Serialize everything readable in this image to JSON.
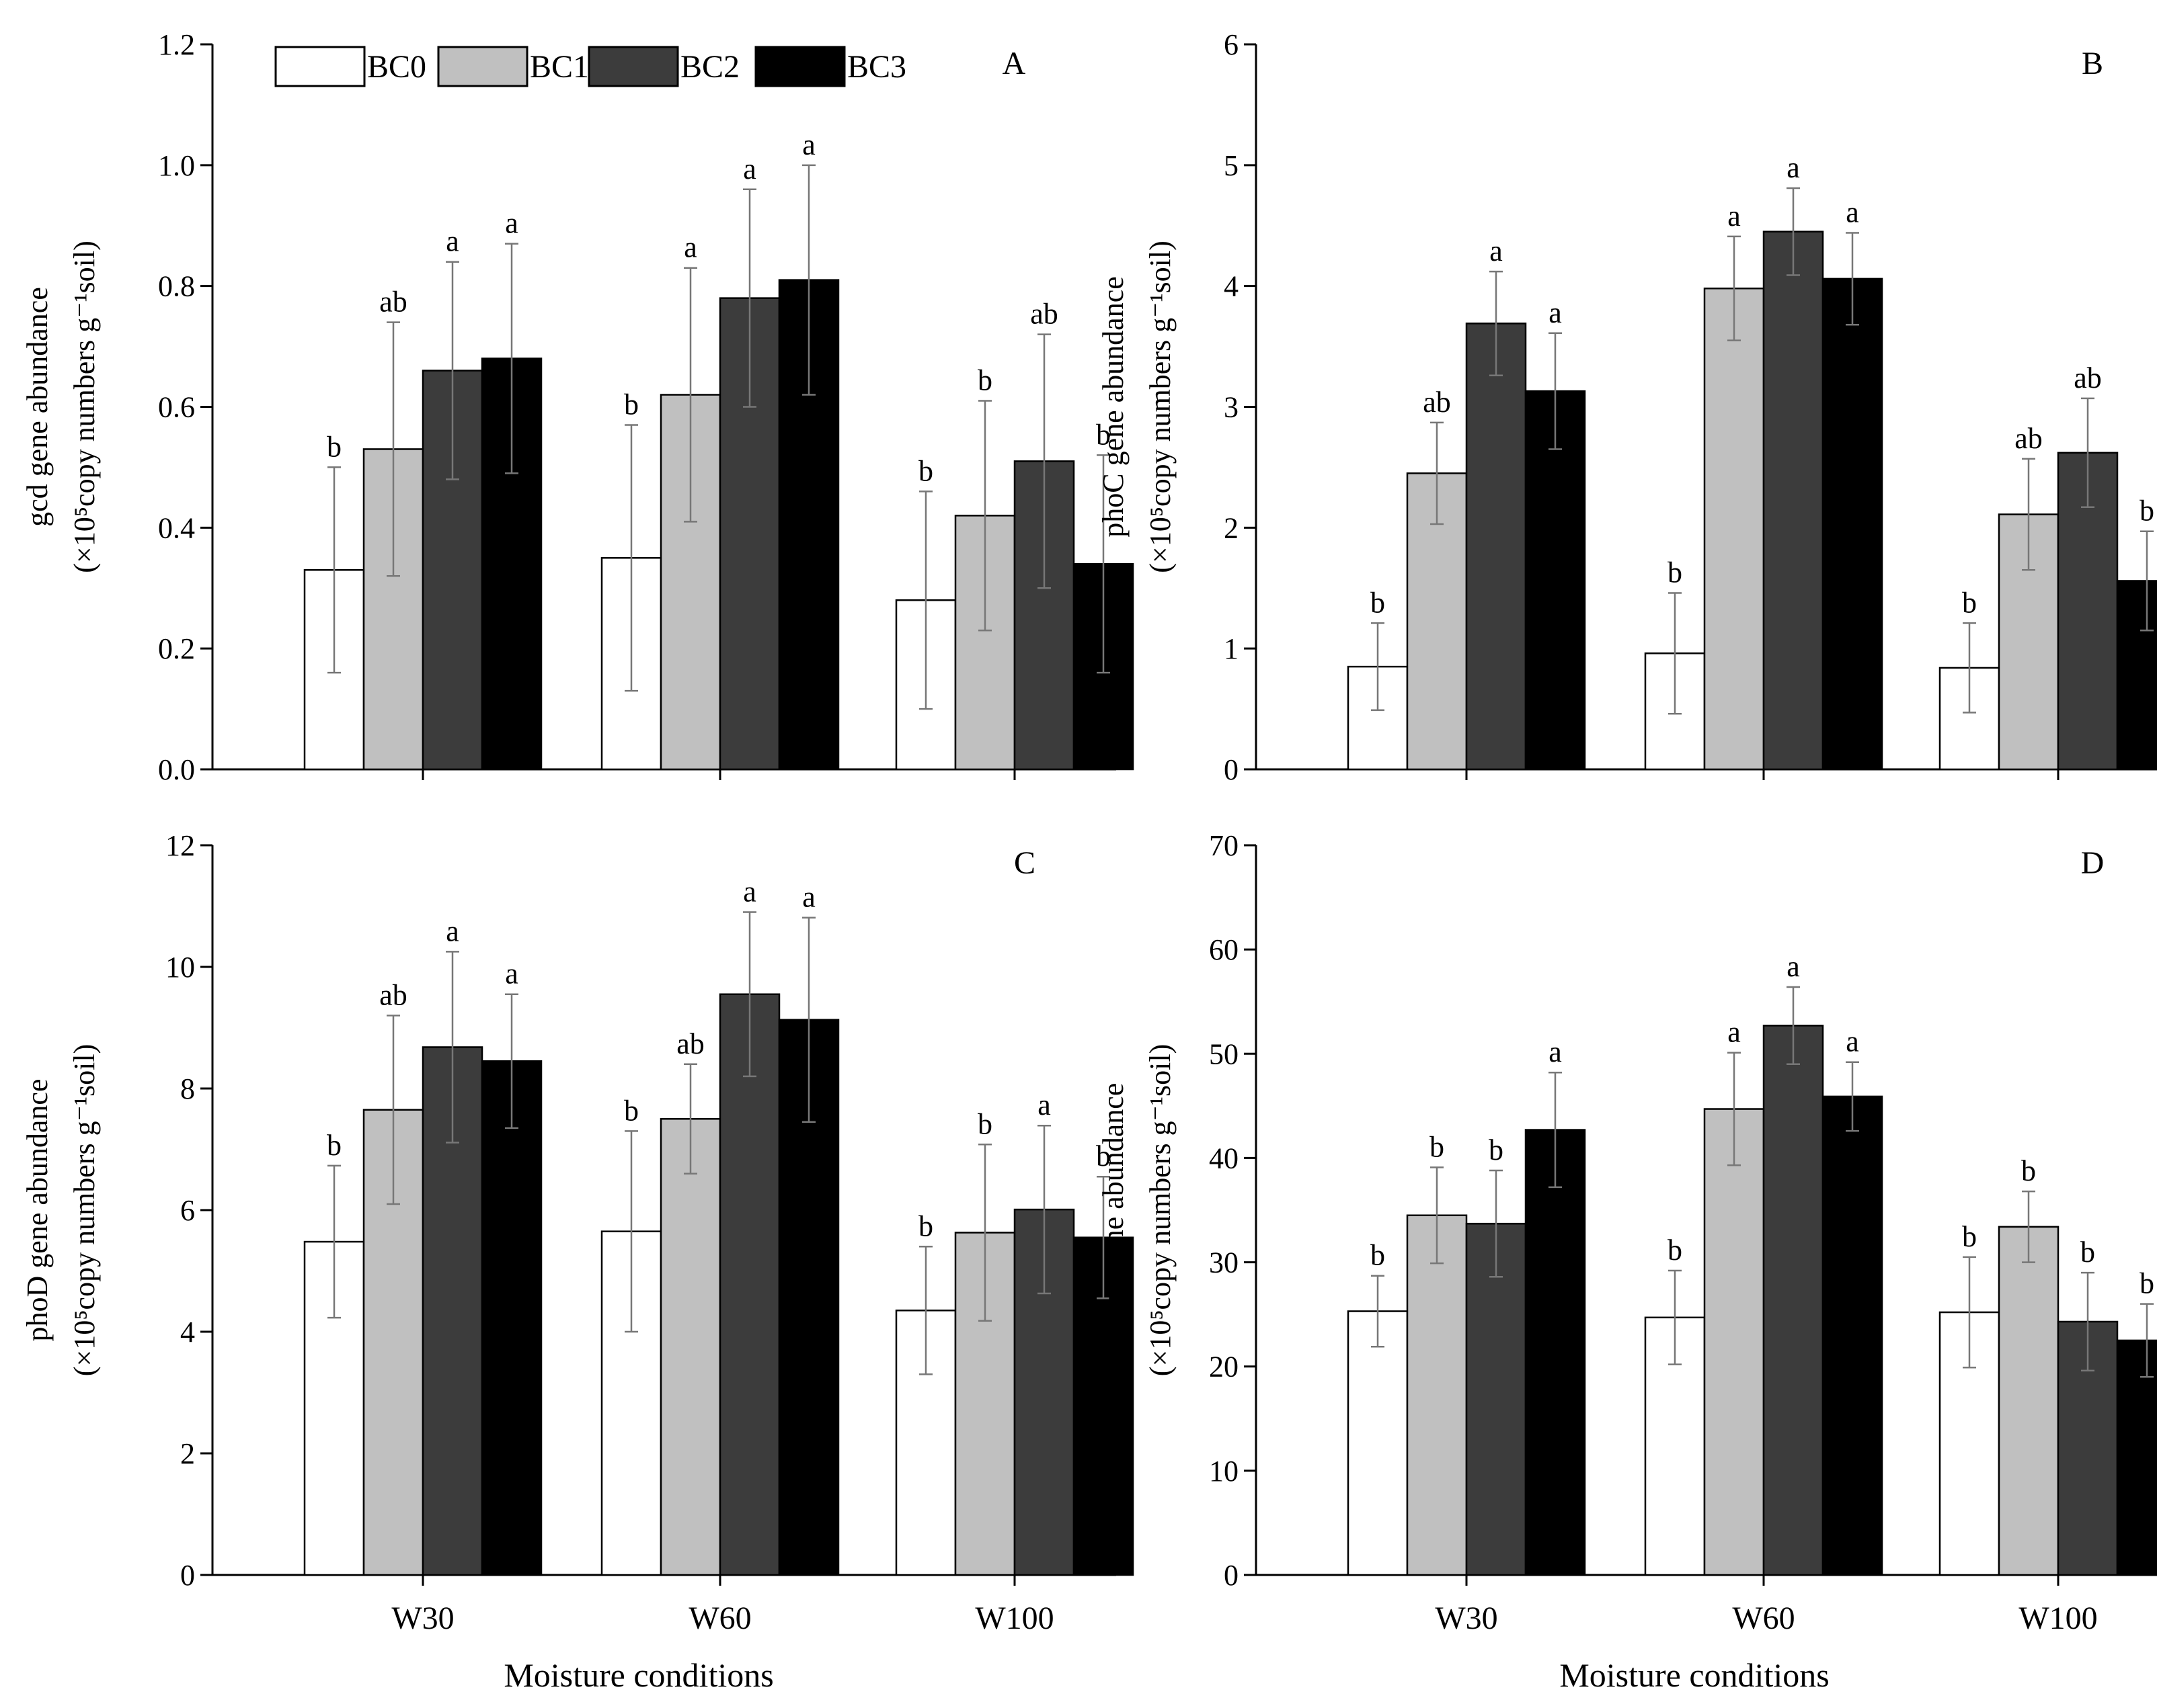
{
  "legend": [
    "BC0",
    "BC1",
    "BC2",
    "BC3"
  ],
  "colors": {
    "BC0": "#ffffff",
    "BC1": "#c0c0c0",
    "BC2": "#3c3c3c",
    "BC3": "#000000",
    "axis": "#000000",
    "error": "#777777"
  },
  "xlabel": "Moisture conditions",
  "chart_data": [
    {
      "type": "bar",
      "panel": "A",
      "ylabel_line1": "gcd gene abundance",
      "ylabel_line2": "(×10⁵copy numbers g⁻¹soil)",
      "categories": [
        "W30",
        "W60",
        "W100"
      ],
      "ylim": [
        0,
        1.2
      ],
      "yticks": [
        "0.0",
        "0.2",
        "0.4",
        "0.6",
        "0.8",
        "1.0",
        "1.2"
      ],
      "series": [
        {
          "name": "BC0",
          "values": [
            0.33,
            0.35,
            0.28
          ],
          "errors": [
            0.17,
            0.22,
            0.18
          ],
          "letters": [
            "b",
            "b",
            "b"
          ]
        },
        {
          "name": "BC1",
          "values": [
            0.53,
            0.62,
            0.42
          ],
          "errors": [
            0.21,
            0.21,
            0.19
          ],
          "letters": [
            "ab",
            "a",
            "b"
          ]
        },
        {
          "name": "BC2",
          "values": [
            0.66,
            0.78,
            0.51
          ],
          "errors": [
            0.18,
            0.18,
            0.21
          ],
          "letters": [
            "a",
            "a",
            "ab"
          ]
        },
        {
          "name": "BC3",
          "values": [
            0.68,
            0.81,
            0.34
          ],
          "errors": [
            0.19,
            0.19,
            0.18
          ],
          "letters": [
            "a",
            "a",
            "b"
          ]
        }
      ]
    },
    {
      "type": "bar",
      "panel": "B",
      "ylabel_line1": "phoC gene abundance",
      "ylabel_line2": "(×10⁵copy numbers g⁻¹soil)",
      "categories": [
        "W30",
        "W60",
        "W100"
      ],
      "ylim": [
        0,
        6
      ],
      "yticks": [
        "0",
        "1",
        "2",
        "3",
        "4",
        "5",
        "6"
      ],
      "series": [
        {
          "name": "BC0",
          "values": [
            0.85,
            0.96,
            0.84
          ],
          "errors": [
            0.36,
            0.5,
            0.37
          ],
          "letters": [
            "b",
            "b",
            "b"
          ]
        },
        {
          "name": "BC1",
          "values": [
            2.45,
            3.98,
            2.11
          ],
          "errors": [
            0.42,
            0.43,
            0.46
          ],
          "letters": [
            "ab",
            "a",
            "ab"
          ]
        },
        {
          "name": "BC2",
          "values": [
            3.69,
            4.45,
            2.62
          ],
          "errors": [
            0.43,
            0.36,
            0.45
          ],
          "letters": [
            "a",
            "a",
            "ab"
          ]
        },
        {
          "name": "BC3",
          "values": [
            3.13,
            4.06,
            1.56
          ],
          "errors": [
            0.48,
            0.38,
            0.41
          ],
          "letters": [
            "a",
            "a",
            "b"
          ]
        }
      ]
    },
    {
      "type": "bar",
      "panel": "C",
      "ylabel_line1": "phoD gene abundance",
      "ylabel_line2": "(×10⁵copy numbers g⁻¹soil)",
      "categories": [
        "W30",
        "W60",
        "W100"
      ],
      "ylim": [
        0,
        12
      ],
      "yticks": [
        "0",
        "2",
        "4",
        "6",
        "8",
        "10",
        "12"
      ],
      "series": [
        {
          "name": "BC0",
          "values": [
            5.48,
            5.65,
            4.35
          ],
          "errors": [
            1.25,
            1.65,
            1.05
          ],
          "letters": [
            "b",
            "b",
            "b"
          ]
        },
        {
          "name": "BC1",
          "values": [
            7.65,
            7.5,
            5.63
          ],
          "errors": [
            1.55,
            0.9,
            1.45
          ],
          "letters": [
            "ab",
            "ab",
            "b"
          ]
        },
        {
          "name": "BC2",
          "values": [
            8.68,
            9.55,
            6.01
          ],
          "errors": [
            1.57,
            1.35,
            1.38
          ],
          "letters": [
            "a",
            "a",
            "a"
          ]
        },
        {
          "name": "BC3",
          "values": [
            8.45,
            9.13,
            5.55
          ],
          "errors": [
            1.1,
            1.68,
            1.0
          ],
          "letters": [
            "a",
            "a",
            "b"
          ]
        }
      ]
    },
    {
      "type": "bar",
      "panel": "D",
      "ylabel_line1": "pqqc gene abundance",
      "ylabel_line2": "(×10⁵copy numbers g⁻¹soil)",
      "categories": [
        "W30",
        "W60",
        "W100"
      ],
      "ylim": [
        0,
        70
      ],
      "yticks": [
        "0",
        "10",
        "20",
        "30",
        "40",
        "50",
        "60",
        "70"
      ],
      "series": [
        {
          "name": "BC0",
          "values": [
            25.3,
            24.7,
            25.2
          ],
          "errors": [
            3.4,
            4.5,
            5.3
          ],
          "letters": [
            "b",
            "b",
            "b"
          ]
        },
        {
          "name": "BC1",
          "values": [
            34.5,
            44.7,
            33.4
          ],
          "errors": [
            4.6,
            5.4,
            3.4
          ],
          "letters": [
            "b",
            "a",
            "b"
          ]
        },
        {
          "name": "BC2",
          "values": [
            33.7,
            52.7,
            24.3
          ],
          "errors": [
            5.1,
            3.7,
            4.7
          ],
          "letters": [
            "b",
            "a",
            "b"
          ]
        },
        {
          "name": "BC3",
          "values": [
            42.7,
            45.9,
            22.5
          ],
          "errors": [
            5.5,
            3.3,
            3.5
          ],
          "letters": [
            "a",
            "a",
            "b"
          ]
        }
      ]
    }
  ]
}
